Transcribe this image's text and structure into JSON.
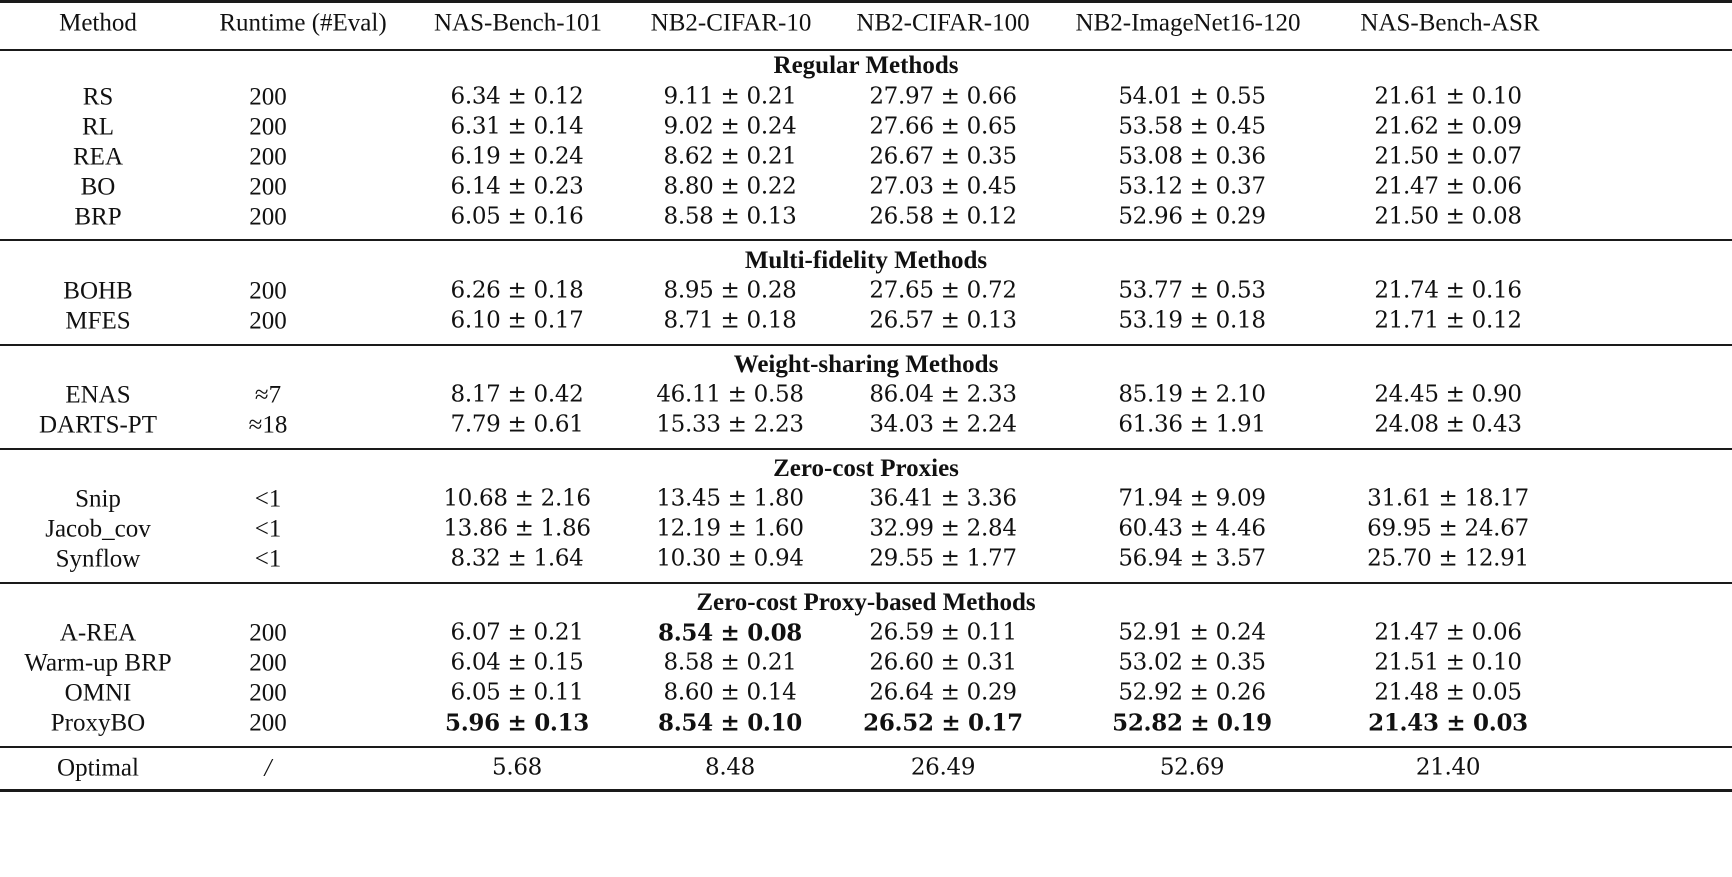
{
  "table": {
    "columns": [
      "Method",
      "Runtime (#Eval)",
      "NAS-Bench-101",
      "NB2-CIFAR-10",
      "NB2-CIFAR-100",
      "NB2-ImageNet16-120",
      "NAS-Bench-ASR"
    ],
    "sections": [
      {
        "title": "Regular Methods",
        "rows": [
          {
            "method": "RS",
            "runtime": "200",
            "values": [
              "6.34 ± 0.12",
              "9.11 ± 0.21",
              "27.97 ± 0.66",
              "54.01 ± 0.55",
              "21.61 ± 0.10"
            ],
            "bold": [
              false,
              false,
              false,
              false,
              false
            ]
          },
          {
            "method": "RL",
            "runtime": "200",
            "values": [
              "6.31 ± 0.14",
              "9.02 ± 0.24",
              "27.66 ± 0.65",
              "53.58 ± 0.45",
              "21.62 ± 0.09"
            ],
            "bold": [
              false,
              false,
              false,
              false,
              false
            ]
          },
          {
            "method": "REA",
            "runtime": "200",
            "values": [
              "6.19 ± 0.24",
              "8.62 ± 0.21",
              "26.67 ± 0.35",
              "53.08 ± 0.36",
              "21.50 ± 0.07"
            ],
            "bold": [
              false,
              false,
              false,
              false,
              false
            ]
          },
          {
            "method": "BO",
            "runtime": "200",
            "values": [
              "6.14 ± 0.23",
              "8.80 ± 0.22",
              "27.03 ± 0.45",
              "53.12 ± 0.37",
              "21.47 ± 0.06"
            ],
            "bold": [
              false,
              false,
              false,
              false,
              false
            ]
          },
          {
            "method": "BRP",
            "runtime": "200",
            "values": [
              "6.05 ± 0.16",
              "8.58 ± 0.13",
              "26.58 ± 0.12",
              "52.96 ± 0.29",
              "21.50 ± 0.08"
            ],
            "bold": [
              false,
              false,
              false,
              false,
              false
            ]
          }
        ]
      },
      {
        "title": "Multi-fidelity Methods",
        "rows": [
          {
            "method": "BOHB",
            "runtime": "200",
            "values": [
              "6.26 ± 0.18",
              "8.95 ± 0.28",
              "27.65 ± 0.72",
              "53.77 ± 0.53",
              "21.74 ± 0.16"
            ],
            "bold": [
              false,
              false,
              false,
              false,
              false
            ]
          },
          {
            "method": "MFES",
            "runtime": "200",
            "values": [
              "6.10 ± 0.17",
              "8.71 ± 0.18",
              "26.57 ± 0.13",
              "53.19 ± 0.18",
              "21.71 ± 0.12"
            ],
            "bold": [
              false,
              false,
              false,
              false,
              false
            ]
          }
        ]
      },
      {
        "title": "Weight-sharing Methods",
        "rows": [
          {
            "method": "ENAS",
            "runtime": "≈7",
            "values": [
              "8.17 ± 0.42",
              "46.11 ± 0.58",
              "86.04 ± 2.33",
              "85.19 ± 2.10",
              "24.45 ± 0.90"
            ],
            "bold": [
              false,
              false,
              false,
              false,
              false
            ]
          },
          {
            "method": "DARTS-PT",
            "runtime": "≈18",
            "values": [
              "7.79 ± 0.61",
              "15.33 ± 2.23",
              "34.03 ± 2.24",
              "61.36 ± 1.91",
              "24.08 ± 0.43"
            ],
            "bold": [
              false,
              false,
              false,
              false,
              false
            ]
          }
        ]
      },
      {
        "title": "Zero-cost Proxies",
        "rows": [
          {
            "method": "Snip",
            "runtime": "<1",
            "values": [
              "10.68 ± 2.16",
              "13.45 ± 1.80",
              "36.41 ± 3.36",
              "71.94 ± 9.09",
              "31.61 ± 18.17"
            ],
            "bold": [
              false,
              false,
              false,
              false,
              false
            ]
          },
          {
            "method": "Jacob_cov",
            "runtime": "<1",
            "values": [
              "13.86 ± 1.86",
              "12.19 ± 1.60",
              "32.99 ± 2.84",
              "60.43 ± 4.46",
              "69.95 ± 24.67"
            ],
            "bold": [
              false,
              false,
              false,
              false,
              false
            ]
          },
          {
            "method": "Synflow",
            "runtime": "<1",
            "values": [
              "8.32 ± 1.64",
              "10.30 ± 0.94",
              "29.55 ± 1.77",
              "56.94 ± 3.57",
              "25.70 ± 12.91"
            ],
            "bold": [
              false,
              false,
              false,
              false,
              false
            ]
          }
        ]
      },
      {
        "title": "Zero-cost Proxy-based Methods",
        "rows": [
          {
            "method": "A-REA",
            "runtime": "200",
            "values": [
              "6.07 ± 0.21",
              "8.54 ± 0.08",
              "26.59 ± 0.11",
              "52.91 ± 0.24",
              "21.47 ± 0.06"
            ],
            "bold": [
              false,
              true,
              false,
              false,
              false
            ]
          },
          {
            "method": "Warm-up BRP",
            "runtime": "200",
            "values": [
              "6.04 ± 0.15",
              "8.58 ± 0.21",
              "26.60 ± 0.31",
              "53.02 ± 0.35",
              "21.51 ± 0.10"
            ],
            "bold": [
              false,
              false,
              false,
              false,
              false
            ]
          },
          {
            "method": "OMNI",
            "runtime": "200",
            "values": [
              "6.05 ± 0.11",
              "8.60 ± 0.14",
              "26.64 ± 0.29",
              "52.92 ± 0.26",
              "21.48 ± 0.05"
            ],
            "bold": [
              false,
              false,
              false,
              false,
              false
            ]
          },
          {
            "method": "ProxyBO",
            "runtime": "200",
            "values": [
              "5.96 ± 0.13",
              "8.54 ± 0.10",
              "26.52 ± 0.17",
              "52.82 ± 0.19",
              "21.43 ± 0.03"
            ],
            "bold": [
              true,
              true,
              true,
              true,
              true
            ]
          }
        ]
      }
    ],
    "footer": {
      "method": "Optimal",
      "runtime": "/",
      "values": [
        "5.68",
        "8.48",
        "26.49",
        "52.69",
        "21.40"
      ]
    }
  }
}
